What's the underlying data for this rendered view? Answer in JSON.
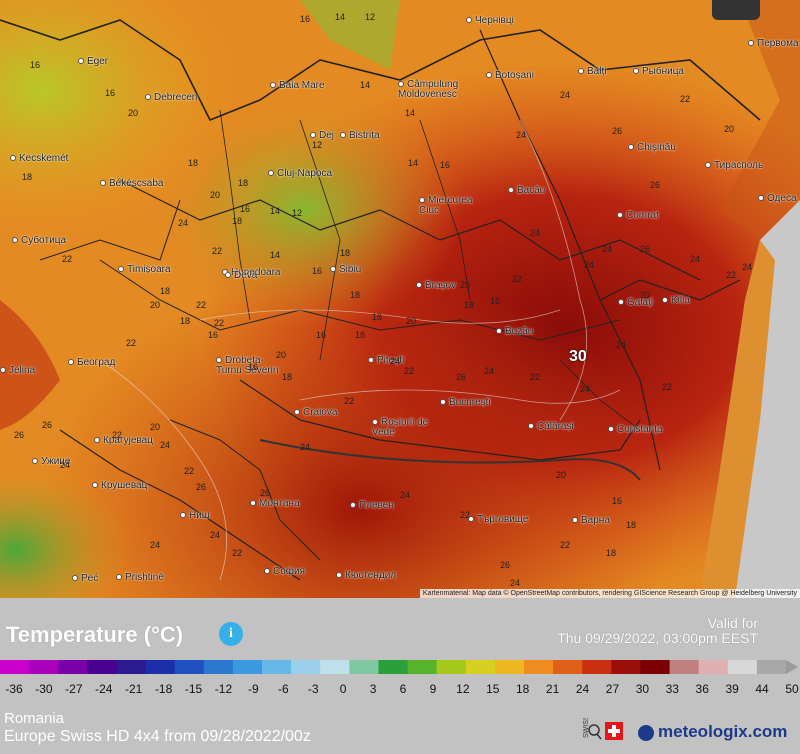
{
  "map": {
    "cities": [
      {
        "name": "Eger"
      },
      {
        "name": "Debrecen"
      },
      {
        "name": "Kecskemét"
      },
      {
        "name": "Békéscsaba"
      },
      {
        "name": "Cубoтица"
      },
      {
        "name": "Timișoara"
      },
      {
        "name": "Hunedoara"
      },
      {
        "name": "Deva"
      },
      {
        "name": "Cluj-Napoca"
      },
      {
        "name": "Dej"
      },
      {
        "name": "Bistrița"
      },
      {
        "name": "Baia Mare"
      },
      {
        "name": "Câmpulung Moldovenesc"
      },
      {
        "name": "Botoșani"
      },
      {
        "name": "Bălți"
      },
      {
        "name": "Рыбница"
      },
      {
        "name": "Chișinău"
      },
      {
        "name": "Тирасполь"
      },
      {
        "name": "Одеса"
      },
      {
        "name": "Bacău"
      },
      {
        "name": "Miercurea Ciuc"
      },
      {
        "name": "Comrat"
      },
      {
        "name": "Sibiu"
      },
      {
        "name": "Brașov"
      },
      {
        "name": "Buzău"
      },
      {
        "name": "Galați"
      },
      {
        "name": "Kilia"
      },
      {
        "name": "Pitești"
      },
      {
        "name": "București"
      },
      {
        "name": "Călărași"
      },
      {
        "name": "Constanța"
      },
      {
        "name": "Craiova"
      },
      {
        "name": "Roșiorii de Vede"
      },
      {
        "name": "Drobeta-Turnu Severin"
      },
      {
        "name": "Београд"
      },
      {
        "name": "Jelina"
      },
      {
        "name": "Крагујевац"
      },
      {
        "name": "Ужице"
      },
      {
        "name": "Крушевац"
      },
      {
        "name": "Ниш"
      },
      {
        "name": "Монтана"
      },
      {
        "name": "Плевен"
      },
      {
        "name": "Търговище"
      },
      {
        "name": "Варна"
      },
      {
        "name": "София"
      },
      {
        "name": "Кюстендил"
      },
      {
        "name": "Prishtinë"
      },
      {
        "name": "Peć"
      },
      {
        "name": "Чернівці"
      },
      {
        "name": "Первома"
      }
    ],
    "iso_labels": [
      "16",
      "16",
      "14",
      "12",
      "14",
      "20",
      "16",
      "18",
      "14",
      "14",
      "12",
      "18",
      "20",
      "22",
      "24",
      "24",
      "16",
      "24",
      "26",
      "22",
      "20",
      "22",
      "24",
      "26",
      "18",
      "16",
      "18",
      "14",
      "12",
      "16",
      "18",
      "14",
      "16",
      "18",
      "20",
      "22",
      "24",
      "26",
      "24",
      "24",
      "22",
      "24",
      "22",
      "20",
      "18",
      "16",
      "18",
      "16",
      "18",
      "22",
      "24",
      "26",
      "24",
      "22",
      "20",
      "18",
      "16",
      "22",
      "24",
      "24",
      "16",
      "18",
      "20",
      "22",
      "22",
      "24",
      "26",
      "24",
      "22",
      "20",
      "16",
      "18",
      "24",
      "26",
      "26",
      "24",
      "22",
      "20",
      "22",
      "24",
      "22",
      "24",
      "26",
      "26",
      "24",
      "22",
      "18",
      "20",
      "22",
      "24"
    ],
    "max_temp_label": "30",
    "attribution": "Kartenmaterial: Map data © OpenStreetMap contributors, rendering GIScience Research Group @ Heidelberg University"
  },
  "legend": {
    "title": "Temperature (°C)",
    "info_icon": "i",
    "valid_line1": "Valid for",
    "valid_line2": "Thu 09/29/2022, 03:00pm EEST",
    "ticks": [
      "-36",
      "-30",
      "-27",
      "-24",
      "-21",
      "-18",
      "-15",
      "-12",
      "-9",
      "-6",
      "-3",
      "0",
      "3",
      "6",
      "9",
      "12",
      "15",
      "18",
      "21",
      "24",
      "27",
      "30",
      "33",
      "36",
      "39",
      "44",
      "50"
    ],
    "colors": [
      "#cc00cc",
      "#aa00bb",
      "#7a00a8",
      "#4a0090",
      "#2b1a90",
      "#1c2fa8",
      "#1f52c0",
      "#2a78d0",
      "#3a9ae0",
      "#66b8e8",
      "#9ad0ec",
      "#bfe0ea",
      "#7fc8a0",
      "#2aa03a",
      "#57b42a",
      "#a6c81a",
      "#d8d020",
      "#f0b820",
      "#f08c20",
      "#e06018",
      "#c83010",
      "#9a1008",
      "#7a0006",
      "#c08080",
      "#e0b0b0",
      "#d8d8d8",
      "#a8a8a8"
    ]
  },
  "footer": {
    "region": "Romania",
    "model": "Europe Swiss HD 4x4 from 09/28/2022/00z",
    "swiss_text": "SWISS HD",
    "brand": "meteologix.com"
  }
}
